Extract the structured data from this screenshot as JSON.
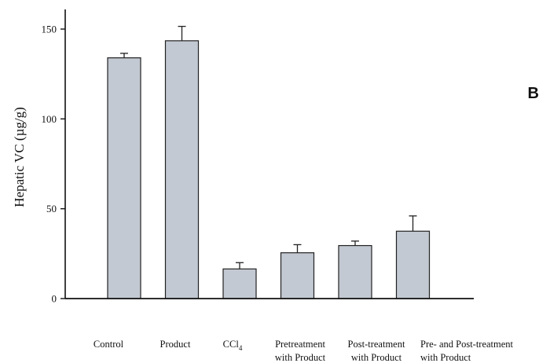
{
  "chart_data": {
    "type": "bar",
    "ylabel": "Hepatic VC (µg/g)",
    "xlabel": "",
    "ylim": [
      0,
      160
    ],
    "yticks": [
      0,
      50,
      100,
      150
    ],
    "grid": false,
    "bar_color": "#c3c9d2",
    "categories": [
      [
        "Control"
      ],
      [
        "Product"
      ],
      [
        "CCl",
        "4"
      ],
      [
        "Pretreatment",
        "with Product"
      ],
      [
        "Post-treatment",
        "with Product"
      ],
      [
        "Pre- and Post-treatment",
        "with Product"
      ]
    ],
    "values": [
      134,
      143.5,
      16.5,
      25.5,
      29.5,
      37.5
    ],
    "errors": [
      2.5,
      8,
      3.5,
      4.5,
      2.5,
      8.5
    ],
    "corner_mark": "B"
  }
}
